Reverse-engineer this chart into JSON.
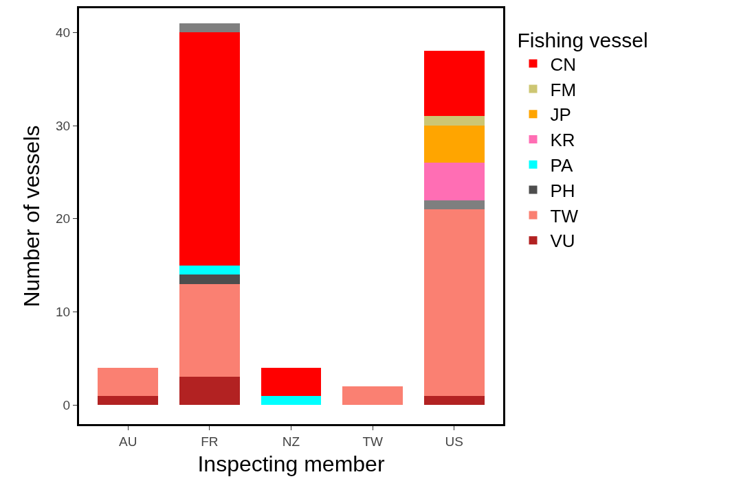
{
  "chart_data": {
    "type": "bar",
    "stacked": true,
    "xlabel": "Inspecting member",
    "ylabel": "Number of vessels",
    "legend_title": "Fishing vessel",
    "legend": "right",
    "grid": false,
    "categories": [
      "AU",
      "FR",
      "NZ",
      "TW",
      "US"
    ],
    "ylim": [
      -2.05,
      42.6
    ],
    "yticks": [
      0,
      10,
      20,
      30,
      40
    ],
    "series": [
      {
        "name": "VU",
        "color": "#b22222",
        "values": [
          1,
          3,
          null,
          null,
          1
        ]
      },
      {
        "name": "TW",
        "color": "#fa8072",
        "values": [
          3,
          10,
          null,
          2,
          20
        ]
      },
      {
        "color": "#7f7f7f",
        "values": [
          null,
          null,
          null,
          null,
          1
        ]
      },
      {
        "name": "PH",
        "color": "#4d4d4d",
        "values": [
          null,
          1,
          null,
          null,
          null
        ]
      },
      {
        "name": "PA",
        "color": "#00ffff",
        "values": [
          null,
          1,
          1,
          null,
          null
        ]
      },
      {
        "name": "KR",
        "color": "#ff6eb4",
        "values": [
          null,
          null,
          null,
          null,
          4
        ]
      },
      {
        "name": "JP",
        "color": "#ffa500",
        "values": [
          null,
          null,
          null,
          null,
          4
        ]
      },
      {
        "name": "FM",
        "color": "#cdc673",
        "values": [
          null,
          null,
          null,
          null,
          1
        ]
      },
      {
        "name": "CN",
        "color": "#ff0000",
        "values": [
          null,
          25,
          3,
          null,
          7
        ]
      },
      {
        "color": "#7f7f7f",
        "values": [
          null,
          1,
          null,
          null,
          null
        ]
      }
    ]
  }
}
